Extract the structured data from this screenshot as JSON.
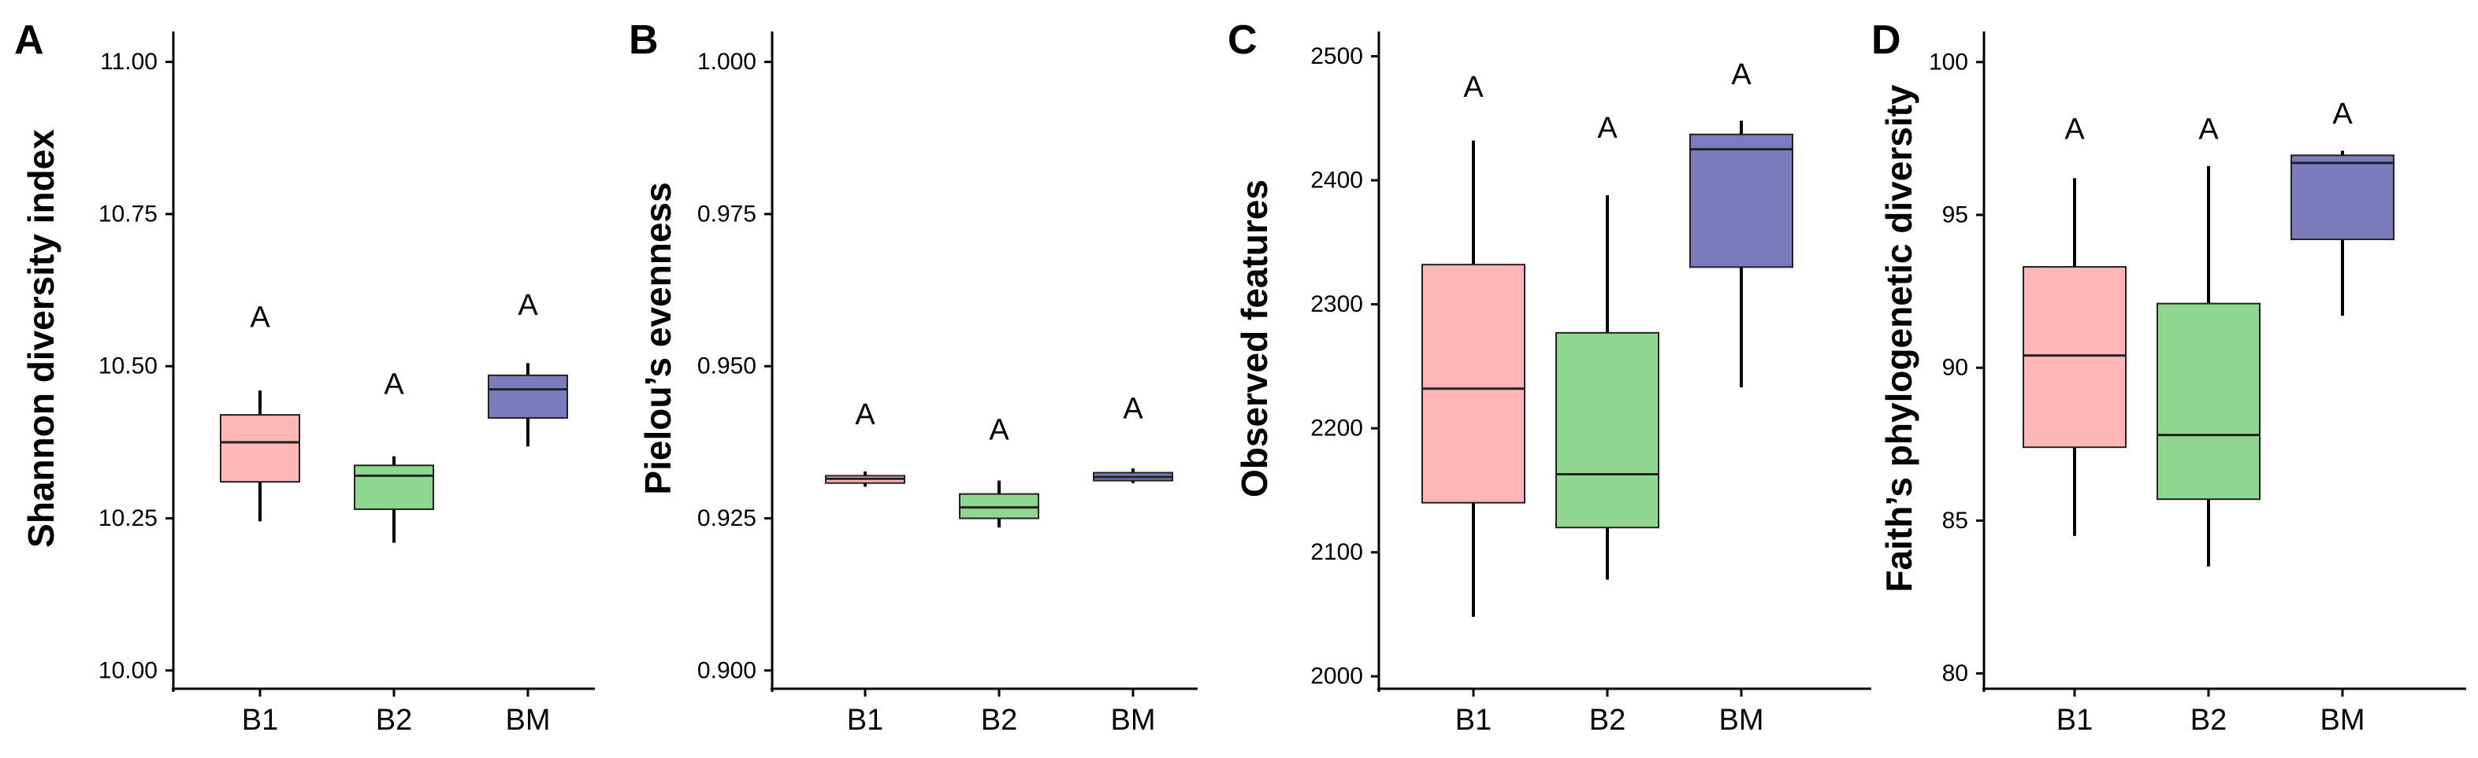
{
  "colors": {
    "B1": "#ffb6b6",
    "B2": "#8fd68f",
    "BM": "#7b7bbd",
    "stroke": "#222222"
  },
  "chart_data": [
    {
      "type": "box",
      "panel": "A",
      "ylabel": "Shannon diversity index",
      "ylim": [
        9.97,
        11.05
      ],
      "yticks": [
        10.0,
        10.25,
        10.5,
        10.75,
        11.0
      ],
      "ytick_labels": [
        "10.00",
        "10.25",
        "10.50",
        "10.75",
        "11.00"
      ],
      "categories": [
        "B1",
        "B2",
        "BM"
      ],
      "boxes": [
        {
          "group": "B1",
          "min": 10.245,
          "q1": 10.31,
          "median": 10.375,
          "q3": 10.42,
          "max": 10.46,
          "label": "A",
          "label_y": 10.58
        },
        {
          "group": "B2",
          "min": 10.21,
          "q1": 10.265,
          "median": 10.32,
          "q3": 10.337,
          "max": 10.352,
          "label": "A",
          "label_y": 10.47
        },
        {
          "group": "BM",
          "min": 10.368,
          "q1": 10.415,
          "median": 10.462,
          "q3": 10.485,
          "max": 10.505,
          "label": "A",
          "label_y": 10.6
        }
      ]
    },
    {
      "type": "box",
      "panel": "B",
      "ylabel": "Pielou’s evenness",
      "ylim": [
        0.897,
        1.005
      ],
      "yticks": [
        0.9,
        0.925,
        0.95,
        0.975,
        1.0
      ],
      "ytick_labels": [
        "0.900",
        "0.925",
        "0.950",
        "0.975",
        "1.000"
      ],
      "categories": [
        "B1",
        "B2",
        "BM"
      ],
      "boxes": [
        {
          "group": "B1",
          "min": 0.9302,
          "q1": 0.9308,
          "median": 0.9315,
          "q3": 0.932,
          "max": 0.9327,
          "label": "A",
          "label_y": 0.942
        },
        {
          "group": "B2",
          "min": 0.9235,
          "q1": 0.925,
          "median": 0.9268,
          "q3": 0.929,
          "max": 0.9312,
          "label": "A",
          "label_y": 0.9395
        },
        {
          "group": "BM",
          "min": 0.9308,
          "q1": 0.9312,
          "median": 0.9318,
          "q3": 0.9325,
          "max": 0.9332,
          "label": "A",
          "label_y": 0.943
        }
      ]
    },
    {
      "type": "box",
      "panel": "C",
      "ylabel": "Observed features",
      "ylim": [
        1990,
        2520
      ],
      "yticks": [
        2000,
        2100,
        2200,
        2300,
        2400,
        2500
      ],
      "ytick_labels": [
        "2000",
        "2100",
        "2200",
        "2300",
        "2400",
        "2500"
      ],
      "categories": [
        "B1",
        "B2",
        "BM"
      ],
      "boxes": [
        {
          "group": "B1",
          "min": 2048,
          "q1": 2140,
          "median": 2232,
          "q3": 2332,
          "max": 2432,
          "label": "A",
          "label_y": 2475
        },
        {
          "group": "B2",
          "min": 2078,
          "q1": 2120,
          "median": 2163,
          "q3": 2277,
          "max": 2388,
          "label": "A",
          "label_y": 2442
        },
        {
          "group": "BM",
          "min": 2233,
          "q1": 2330,
          "median": 2425,
          "q3": 2437,
          "max": 2448,
          "label": "A",
          "label_y": 2485
        }
      ]
    },
    {
      "type": "box",
      "panel": "D",
      "ylabel": "Faith’s phylogenetic diversity",
      "ylim": [
        79.5,
        101
      ],
      "yticks": [
        80,
        85,
        90,
        95,
        100
      ],
      "ytick_labels": [
        "80",
        "85",
        "90",
        "95",
        "100"
      ],
      "categories": [
        "B1",
        "B2",
        "BM"
      ],
      "boxes": [
        {
          "group": "B1",
          "min": 84.5,
          "q1": 87.4,
          "median": 90.4,
          "q3": 93.3,
          "max": 96.2,
          "label": "A",
          "label_y": 97.8
        },
        {
          "group": "B2",
          "min": 83.5,
          "q1": 85.7,
          "median": 87.8,
          "q3": 92.1,
          "max": 96.6,
          "label": "A",
          "label_y": 97.8
        },
        {
          "group": "BM",
          "min": 91.7,
          "q1": 94.2,
          "median": 96.7,
          "q3": 96.95,
          "max": 97.1,
          "label": "A",
          "label_y": 98.3
        }
      ]
    }
  ]
}
